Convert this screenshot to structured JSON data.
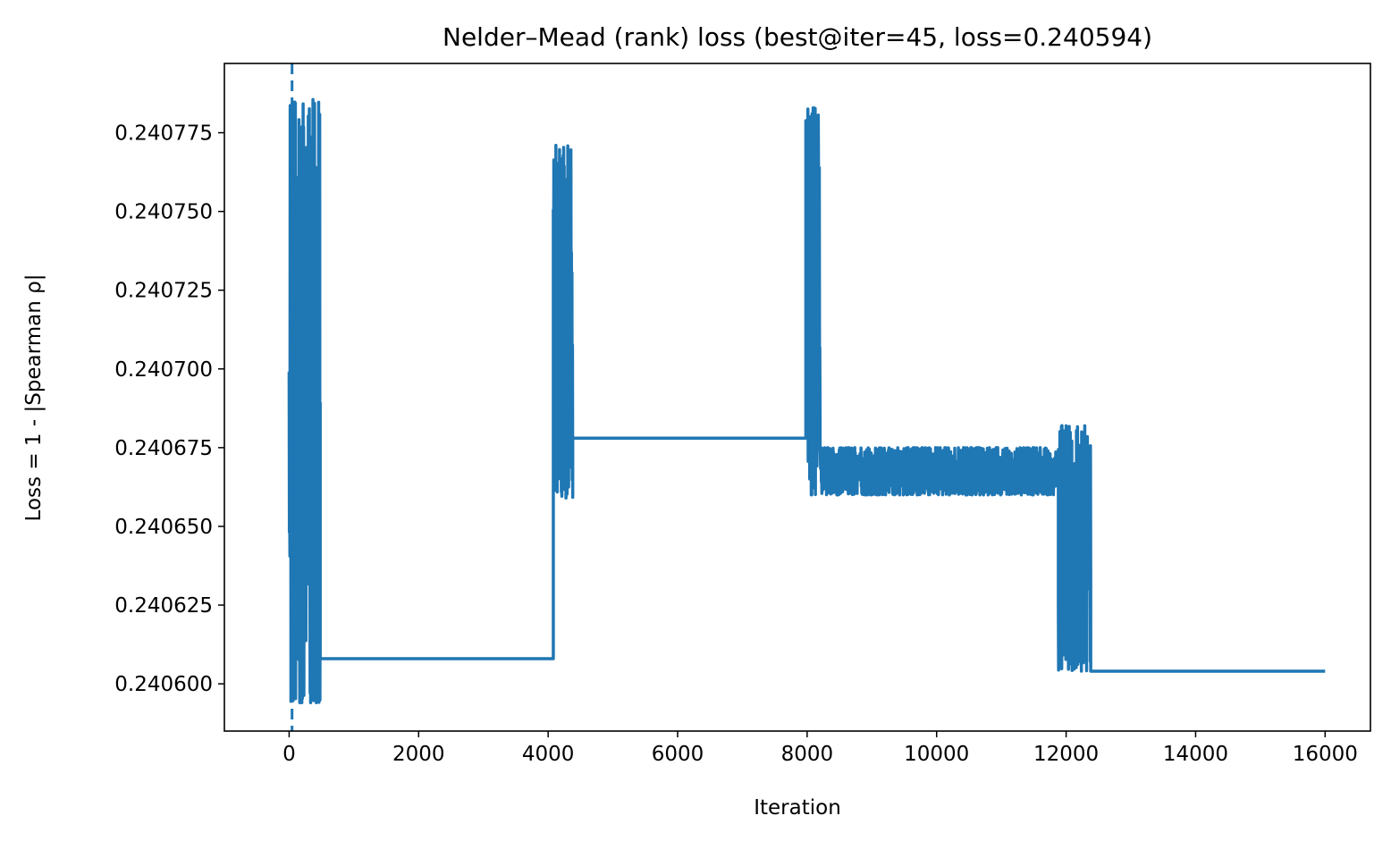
{
  "chart_data": {
    "type": "line",
    "title": "Nelder–Mead (rank) loss (best@iter=45, loss=0.240594)",
    "xlabel": "Iteration",
    "ylabel": "Loss = 1 - |Spearman ρ|",
    "xlim": [
      -1000,
      16700
    ],
    "ylim": [
      0.240585,
      0.240797
    ],
    "xticks": [
      0,
      2000,
      4000,
      6000,
      8000,
      10000,
      12000,
      14000,
      16000
    ],
    "xtick_labels": [
      "0",
      "2000",
      "4000",
      "6000",
      "8000",
      "10000",
      "12000",
      "14000",
      "16000"
    ],
    "yticks": [
      0.2406,
      0.240625,
      0.24065,
      0.240675,
      0.2407,
      0.240725,
      0.24075,
      0.240775
    ],
    "ytick_labels": [
      "0.240600",
      "0.240625",
      "0.240650",
      "0.240675",
      "0.240700",
      "0.240725",
      "0.240750",
      "0.240775"
    ],
    "grid": false,
    "legend": "none",
    "series_color": "#1f77b4",
    "best_iteration": 45,
    "best_loss": 0.240594,
    "series": [
      {
        "segments": [
          {
            "type": "band",
            "x": [
              0,
              480
            ],
            "y": [
              0.240594,
              0.240786
            ]
          },
          {
            "type": "plateau",
            "x": [
              480,
              4080
            ],
            "y": 0.240608
          },
          {
            "type": "band",
            "x": [
              4080,
              4380
            ],
            "y": [
              0.240659,
              0.240771
            ]
          },
          {
            "type": "plateau",
            "x": [
              4380,
              7980
            ],
            "y": 0.240678
          },
          {
            "type": "band",
            "x": [
              7980,
              8200
            ],
            "y": [
              0.24066,
              0.240783
            ]
          },
          {
            "type": "band",
            "x": [
              8200,
              11880
            ],
            "y": [
              0.24066,
              0.240675
            ]
          },
          {
            "type": "band",
            "x": [
              11880,
              12380
            ],
            "y": [
              0.240604,
              0.240682
            ]
          },
          {
            "type": "plateau",
            "x": [
              12380,
              16000
            ],
            "y": 0.240604
          }
        ]
      }
    ]
  }
}
